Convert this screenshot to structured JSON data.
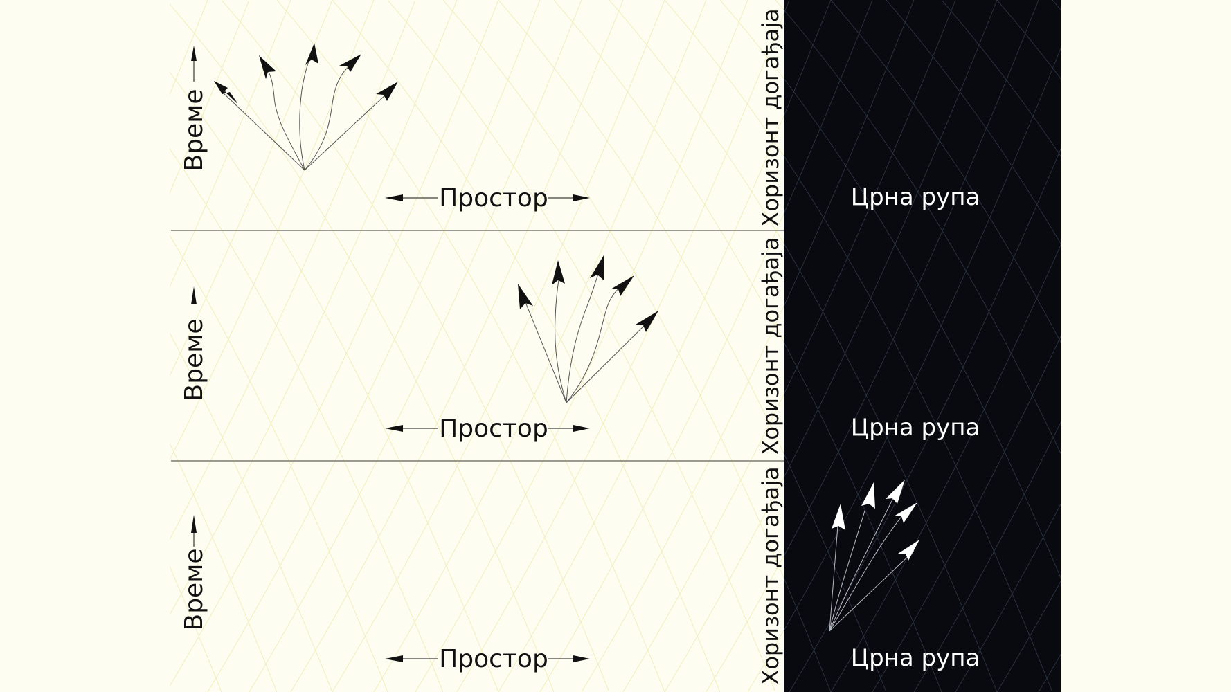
{
  "colors": {
    "background": "#fdfdf1",
    "grid_light": "#f1eebd",
    "black_hole": "#080a0f",
    "grid_dark": "#2a3140",
    "panel_divider": "#7a7a70",
    "ink": "#111111",
    "white": "#ffffff"
  },
  "panels": [
    {
      "time_label": "Време",
      "space_label": "Простор",
      "horizon_label": "Хоризонт догађаја",
      "black_hole_label": "Црна рупа"
    },
    {
      "time_label": "Време",
      "space_label": "Простор",
      "horizon_label": "Хоризонт догађаја",
      "black_hole_label": "Црна рупа"
    },
    {
      "time_label": "Време",
      "space_label": "Простор",
      "horizon_label": "Хоризонт догађаја",
      "black_hole_label": "Црна рупа"
    }
  ]
}
